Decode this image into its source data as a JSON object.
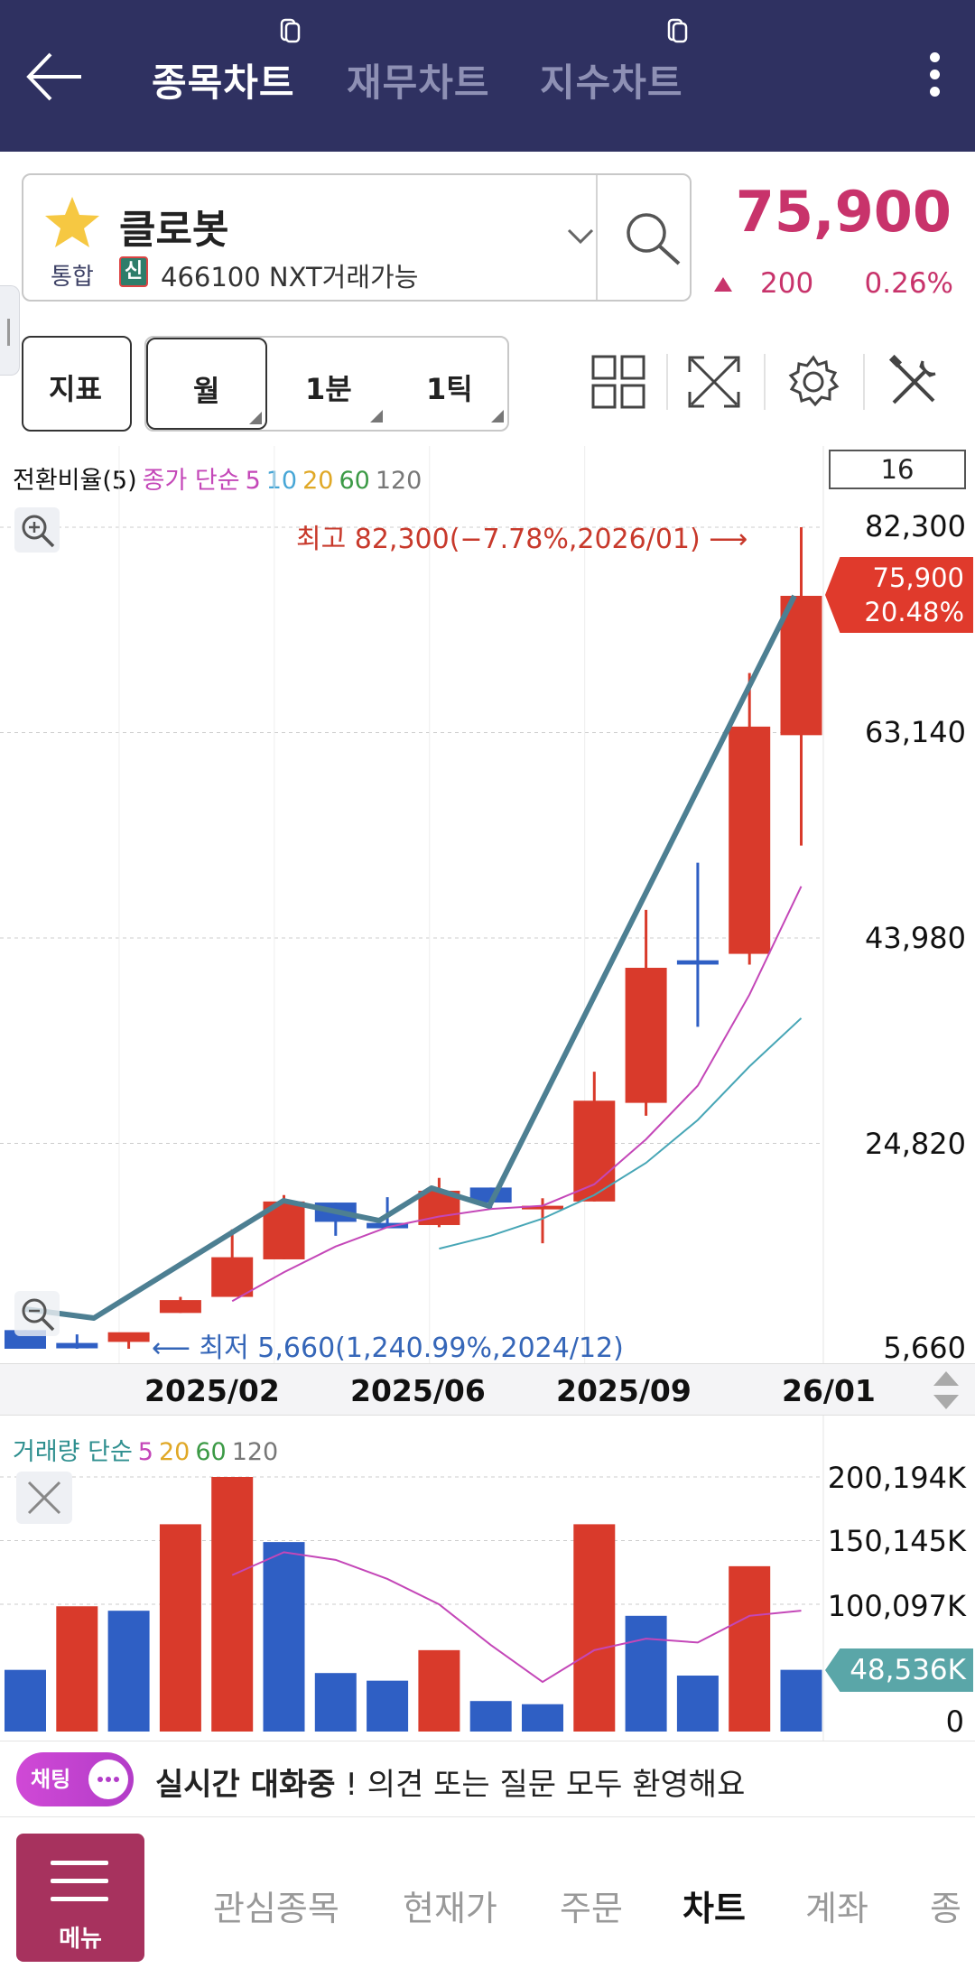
{
  "header": {
    "tabs": [
      "종목차트",
      "재무차트",
      "지수차트"
    ],
    "active_tab": 0
  },
  "stock": {
    "name": "클로봇",
    "market": "통합",
    "shin": "신",
    "code_text": "466100 NXT거래가능",
    "price": "75,900",
    "change": "200",
    "change_pct": "0.26%",
    "change_dir": "up"
  },
  "toolbar": {
    "indicator": "지표",
    "period": "월",
    "minute": "1분",
    "tick": "1틱"
  },
  "chart": {
    "legend": {
      "indicator": "전환비율(5)",
      "ma_prefix": "종가 단순",
      "ma": [
        {
          "label": "5",
          "color": "#c447b8"
        },
        {
          "label": "10",
          "color": "#47a6d6"
        },
        {
          "label": "20",
          "color": "#e0a826"
        },
        {
          "label": "60",
          "color": "#3c9a46"
        },
        {
          "label": "120",
          "color": "#777777"
        }
      ]
    },
    "zoom_count": "16",
    "y_ticks": [
      "82,300",
      "63,140",
      "43,980",
      "24,820",
      "5,660"
    ],
    "high_note": "최고 82,300(−7.78%,2026/01) ⟶",
    "low_note": "⟵ 최저 5,660(1,240.99%,2024/12)",
    "current_tag": {
      "price": "75,900",
      "pct": "20.48%"
    },
    "x_ticks": [
      "2025/02",
      "2025/06",
      "2025/09",
      "26/01"
    ]
  },
  "volume": {
    "legend_prefix": "거래량 단순",
    "ma": [
      {
        "label": "5",
        "color": "#c447b8"
      },
      {
        "label": "20",
        "color": "#e0a826"
      },
      {
        "label": "60",
        "color": "#3c9a46"
      },
      {
        "label": "120",
        "color": "#777777"
      }
    ],
    "y_ticks": [
      "200,194K",
      "150,145K",
      "100,097K",
      "0"
    ],
    "current_tag": "48,536K"
  },
  "chart_data": {
    "type": "candlestick",
    "price_ylim": [
      5660,
      82300
    ],
    "candles": [
      {
        "o": 7400,
        "h": 7400,
        "l": 5660,
        "c": 5660,
        "color": "blue"
      },
      {
        "o": 5700,
        "h": 7000,
        "l": 5660,
        "c": 6200,
        "color": "blue"
      },
      {
        "o": 6300,
        "h": 6800,
        "l": 5660,
        "c": 7200,
        "color": "red"
      },
      {
        "o": 9000,
        "h": 10500,
        "l": 9000,
        "c": 10200,
        "color": "red"
      },
      {
        "o": 10500,
        "h": 16800,
        "l": 10500,
        "c": 14200,
        "color": "red"
      },
      {
        "o": 14000,
        "h": 20000,
        "l": 14000,
        "c": 19400,
        "color": "red"
      },
      {
        "o": 19300,
        "h": 19300,
        "l": 16200,
        "c": 17500,
        "color": "blue"
      },
      {
        "o": 17400,
        "h": 19800,
        "l": 17000,
        "c": 16900,
        "color": "blue"
      },
      {
        "o": 17200,
        "h": 21600,
        "l": 17000,
        "c": 20400,
        "color": "red"
      },
      {
        "o": 20700,
        "h": 20700,
        "l": 18800,
        "c": 19300,
        "color": "blue"
      },
      {
        "o": 19000,
        "h": 19700,
        "l": 15500,
        "c": 18900,
        "color": "red"
      },
      {
        "o": 19400,
        "h": 31500,
        "l": 19400,
        "c": 28800,
        "color": "red"
      },
      {
        "o": 28600,
        "h": 46600,
        "l": 27400,
        "c": 41200,
        "color": "red"
      },
      {
        "o": 41900,
        "h": 51000,
        "l": 35700,
        "c": 41500,
        "color": "blue"
      },
      {
        "o": 42500,
        "h": 68700,
        "l": 41500,
        "c": 63700,
        "color": "red"
      },
      {
        "o": 62900,
        "h": 82300,
        "l": 52600,
        "c": 75900,
        "color": "red"
      }
    ],
    "conversion_line": [
      6000,
      6000,
      8200,
      12500,
      19200,
      18000,
      16800,
      20300,
      19500,
      30000,
      42200,
      52000,
      62000,
      74700
    ],
    "ma5": [
      10100,
      12800,
      15200,
      17000,
      18000,
      18700,
      19000,
      21000,
      25200,
      30200,
      38700,
      48800
    ],
    "ma10": [
      15000,
      16200,
      17800,
      20000,
      23000,
      27000,
      32000,
      36500
    ],
    "volume_ylim": [
      0,
      200194
    ],
    "volumes": [
      48500,
      98500,
      95000,
      163000,
      200194,
      149000,
      46000,
      40000,
      64000,
      24000,
      21500,
      163000,
      91000,
      44000,
      130000,
      48536
    ],
    "volume_colors": [
      "blue",
      "red",
      "blue",
      "red",
      "red",
      "blue",
      "blue",
      "blue",
      "red",
      "blue",
      "blue",
      "red",
      "blue",
      "blue",
      "red",
      "blue"
    ],
    "volume_ma5": [
      123000,
      141000,
      135000,
      120000,
      100000,
      68000,
      39000,
      64000,
      73000,
      70000,
      91000,
      95000
    ]
  },
  "chat": {
    "pill": "채팅",
    "bold": "실시간 대화중",
    "rest": "! 의견 또는 질문 모두 환영해요"
  },
  "nav": {
    "menu": "메뉴",
    "items": [
      "관심종목",
      "현재가",
      "주문",
      "차트",
      "계좌",
      "종"
    ],
    "active": 3
  }
}
